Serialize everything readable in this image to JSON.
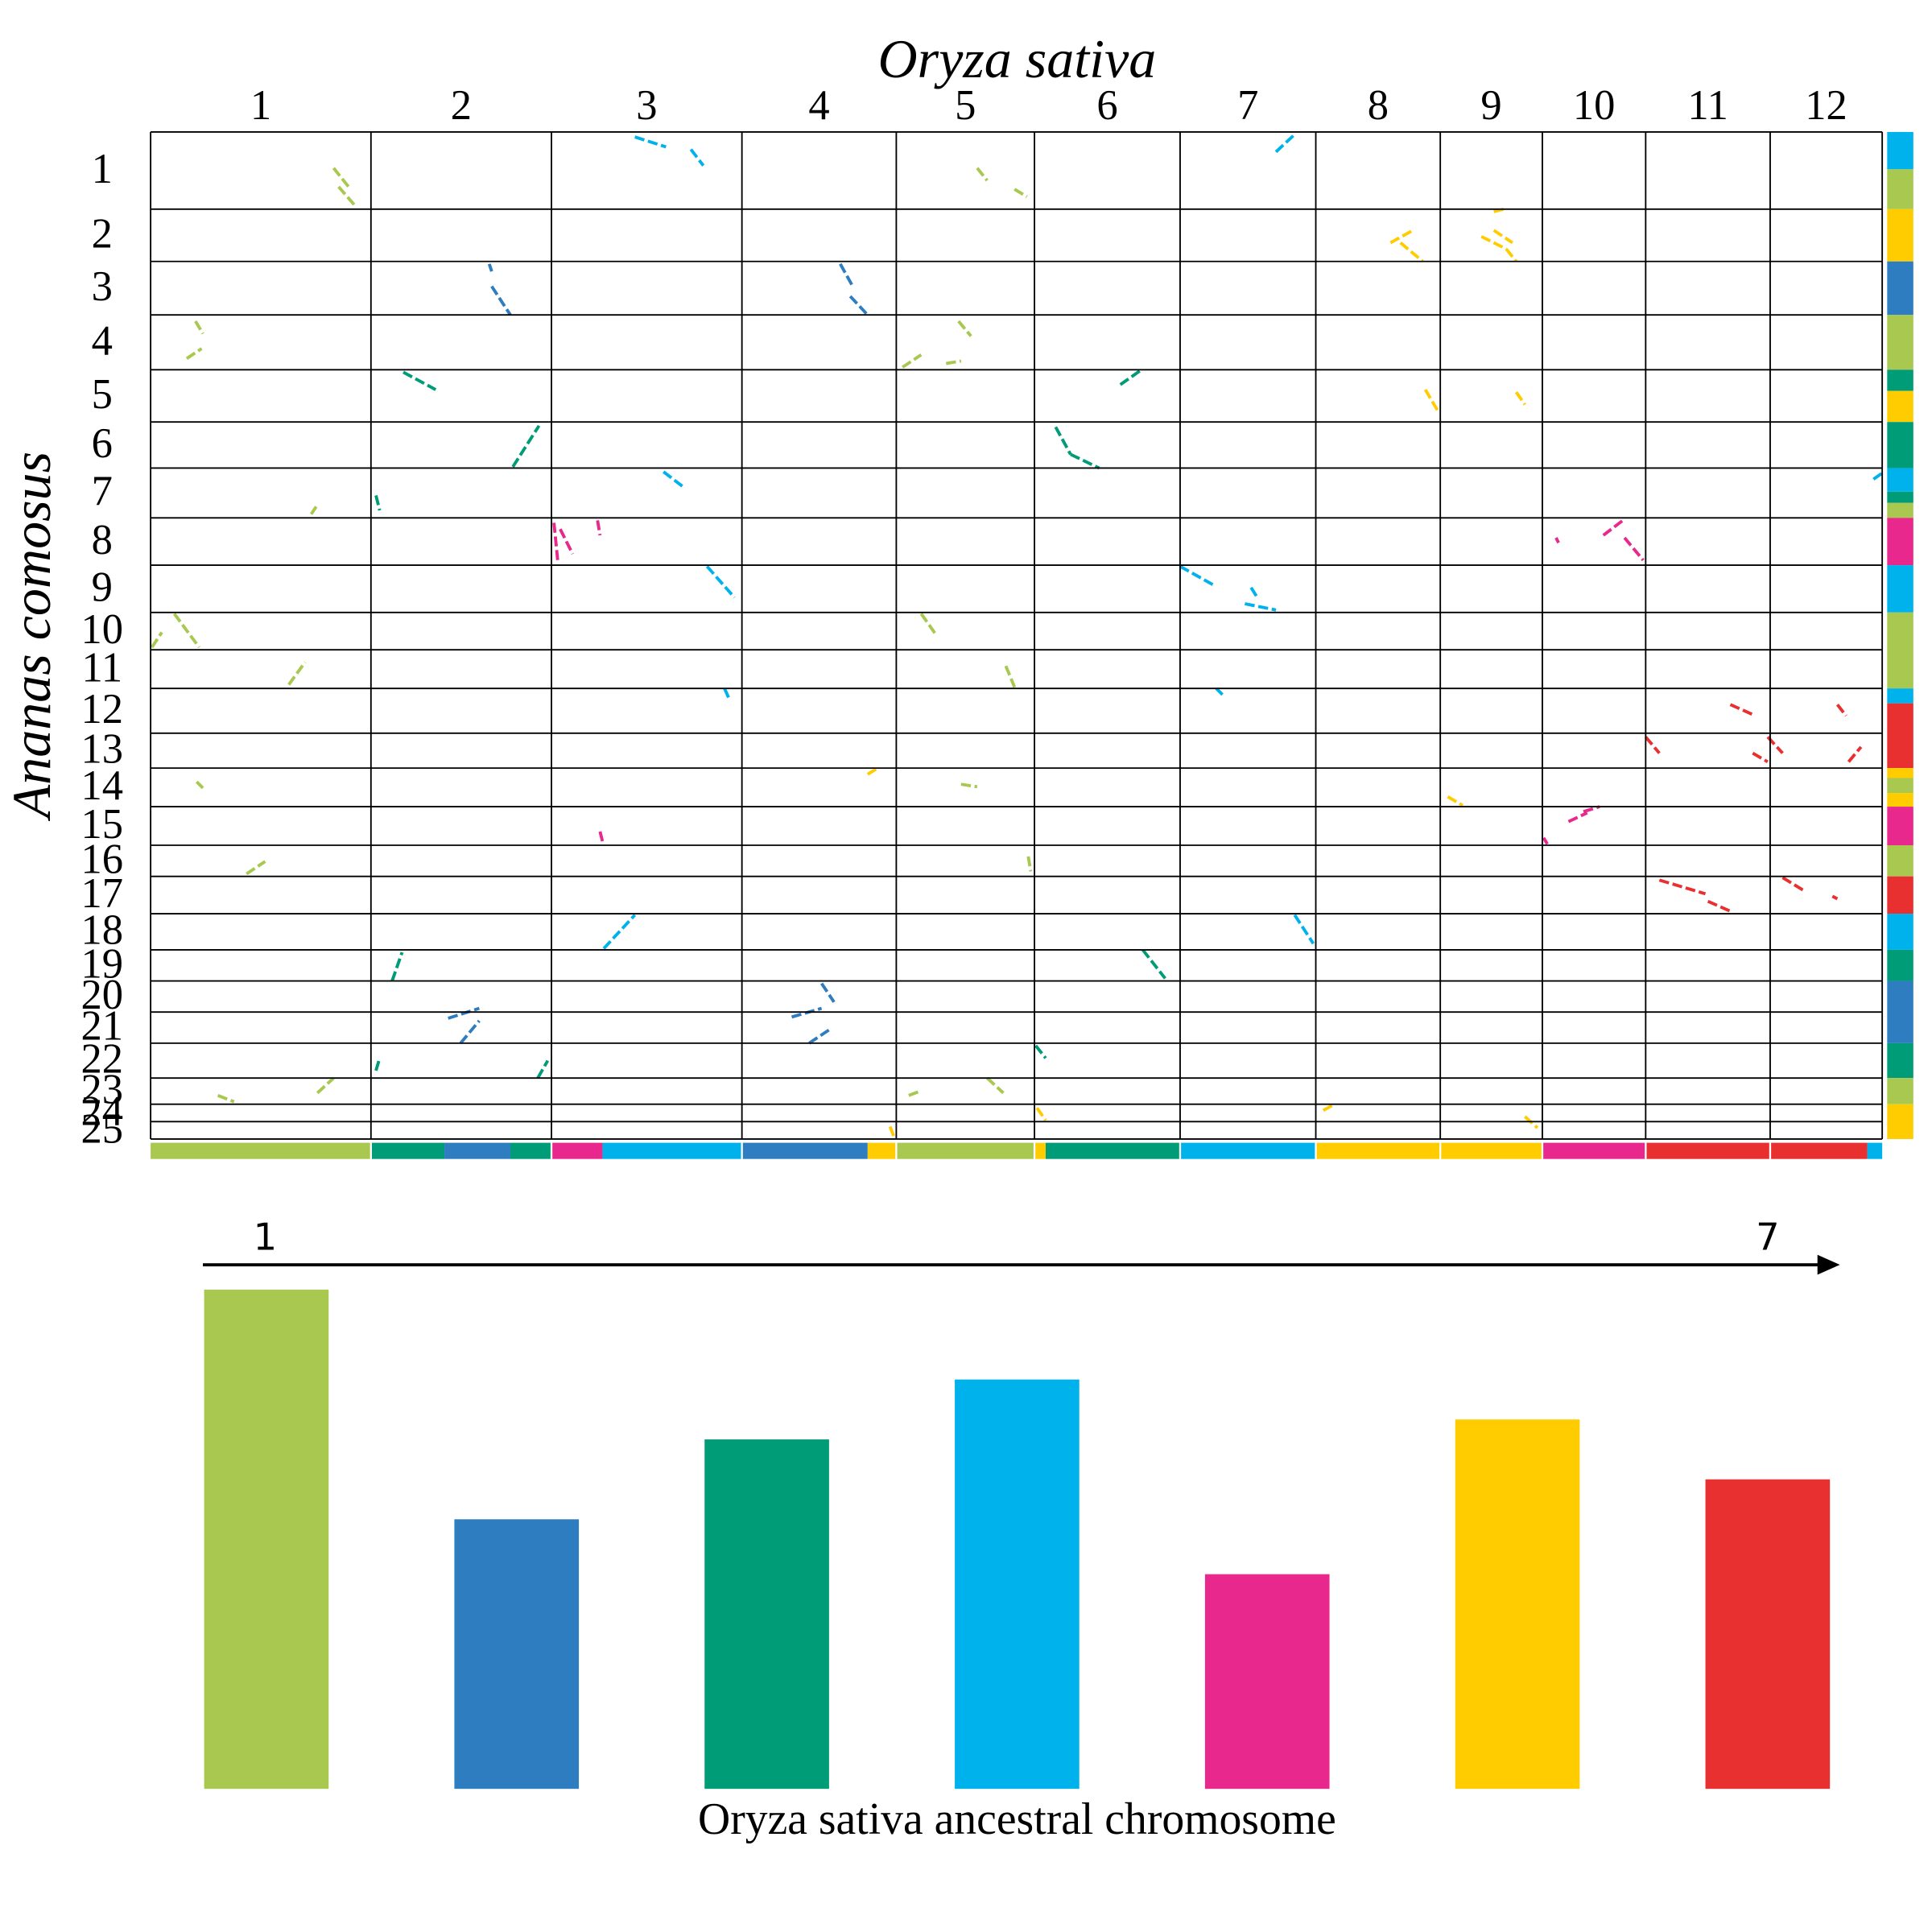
{
  "chart_data": [
    {
      "type": "dotplot",
      "x_title": "Oryza sativa",
      "y_title": "Ananas comosus",
      "columns": [
        "1",
        "2",
        "3",
        "4",
        "5",
        "6",
        "7",
        "8",
        "9",
        "10",
        "11",
        "12"
      ],
      "rows": [
        "1",
        "2",
        "3",
        "4",
        "5",
        "6",
        "7",
        "8",
        "9",
        "10",
        "11",
        "12",
        "13",
        "14",
        "15",
        "16",
        "17",
        "18",
        "19",
        "20",
        "21",
        "22",
        "23",
        "24",
        "25"
      ]
    },
    {
      "type": "bar",
      "x_title": "Oryza sativa ancestral chromosome",
      "arrow_labels": [
        "1",
        "7"
      ],
      "categories": [
        null,
        null,
        null,
        null,
        null,
        null,
        null
      ],
      "values": [
        100,
        54,
        70,
        82,
        43,
        74,
        62
      ],
      "colors": [
        "#a8c850",
        "#2e7dc0",
        "#009b77",
        "#00b2ec",
        "#e8288c",
        "#ffcc00",
        "#e83030"
      ]
    }
  ]
}
